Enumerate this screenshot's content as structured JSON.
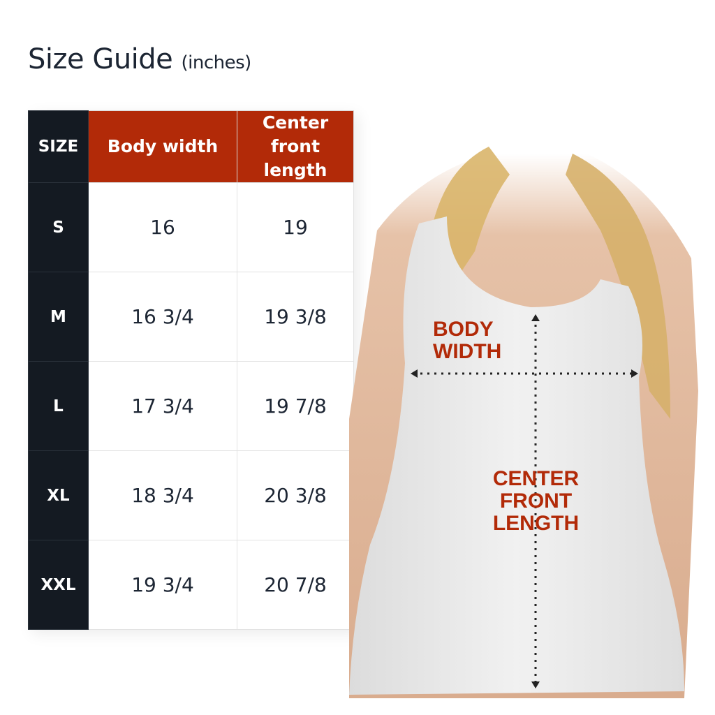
{
  "title": {
    "main": "Size Guide",
    "unit": "(inches)"
  },
  "table": {
    "headers": [
      "SIZE",
      "Body width",
      "Center front length"
    ],
    "rows": [
      {
        "size": "S",
        "body_width": "16",
        "center_front_length": "19"
      },
      {
        "size": "M",
        "body_width": "16 3/4",
        "center_front_length": "19 3/8"
      },
      {
        "size": "L",
        "body_width": "17 3/4",
        "center_front_length": "19 7/8"
      },
      {
        "size": "XL",
        "body_width": "18 3/4",
        "center_front_length": "20 3/8"
      },
      {
        "size": "XXL",
        "body_width": "19 3/4",
        "center_front_length": "20 7/8"
      }
    ]
  },
  "diagram": {
    "body_width_label": "BODY WIDTH",
    "center_front_length_label": "CENTER FRONT LENGTH"
  },
  "colors": {
    "accent": "#b22a08",
    "dark": "#141a22",
    "text": "#1c2533"
  }
}
